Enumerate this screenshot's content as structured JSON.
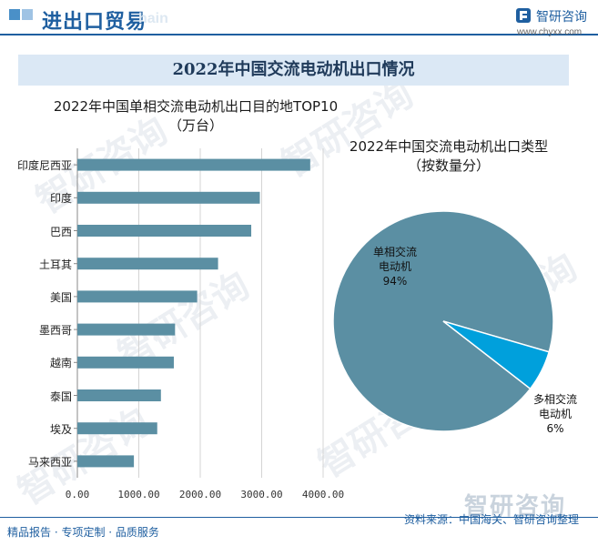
{
  "header": {
    "title": "进出口贸易",
    "watermark": "hain",
    "brand_name": "智研咨询",
    "brand_url": "www.chyxx.com"
  },
  "main_title": "2022年中国交流电动机出口情况",
  "footer": {
    "left": "精品报告 · 专项定制 · 品质服务",
    "source": "资料来源：中国海关、智研咨询整理",
    "watermark": "智研咨询"
  },
  "watermarks": [
    "智研咨询",
    "智研咨询",
    "智研咨询",
    "智研咨询",
    "智研咨询",
    "智研咨询"
  ],
  "colors": {
    "bar": "#5b8fa3",
    "pie_main": "#5b8fa3",
    "pie_minor": "#00a0dc",
    "accent": "#1f5fa0"
  },
  "chart_data": [
    {
      "type": "bar",
      "orientation": "horizontal",
      "title": "2022年中国单相交流电动机出口目的地TOP10",
      "subtitle": "（万台）",
      "categories": [
        "印度尼西亚",
        "印度",
        "巴西",
        "土耳其",
        "美国",
        "墨西哥",
        "越南",
        "泰国",
        "埃及",
        "马来西亚"
      ],
      "values": [
        3790,
        2970,
        2830,
        2290,
        1950,
        1590,
        1570,
        1360,
        1300,
        920
      ],
      "xlim": [
        0,
        4000
      ],
      "xticks": [
        "0.00",
        "1000.00",
        "2000.00",
        "3000.00",
        "4000.00"
      ],
      "grid": "vertical"
    },
    {
      "type": "pie",
      "title": "2022年中国交流电动机出口类型",
      "subtitle": "（按数量分）",
      "slices": [
        {
          "label_line1": "单相交流",
          "label_line2": "电动机",
          "percent_label": "94%",
          "value": 94
        },
        {
          "label_line1": "多相交流",
          "label_line2": "电动机",
          "percent_label": "6%",
          "value": 6
        }
      ]
    }
  ]
}
